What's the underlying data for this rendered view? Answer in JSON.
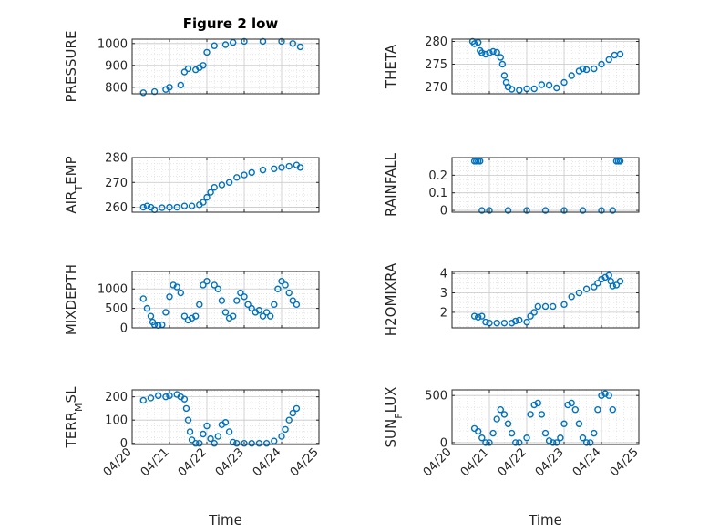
{
  "figure": {
    "title": "Figure 2 low",
    "marker_color": "#0072BD",
    "x_ticks": [
      "04/20",
      "04/21",
      "04/22",
      "04/23",
      "04/24",
      "04/25"
    ],
    "xlabel": "Time"
  },
  "chart_data": [
    {
      "type": "scatter",
      "name": "pressure",
      "ylabel": "PRESSURE",
      "title": "Figure 2 low",
      "xlim": [
        0,
        5
      ],
      "ylim": [
        770,
        1020
      ],
      "yticks": [
        800,
        900,
        1000
      ],
      "grid": true,
      "minor_grid": true,
      "x_ticklabels": [],
      "points": [
        [
          0.3,
          775
        ],
        [
          0.6,
          780
        ],
        [
          0.9,
          790
        ],
        [
          1.0,
          800
        ],
        [
          1.3,
          810
        ],
        [
          1.4,
          870
        ],
        [
          1.5,
          885
        ],
        [
          1.7,
          880
        ],
        [
          1.8,
          890
        ],
        [
          1.9,
          900
        ],
        [
          2.0,
          960
        ],
        [
          2.2,
          990
        ],
        [
          2.5,
          995
        ],
        [
          2.7,
          1005
        ],
        [
          3.0,
          1010
        ],
        [
          3.5,
          1010
        ],
        [
          4.0,
          1010
        ],
        [
          4.3,
          1000
        ],
        [
          4.5,
          985
        ]
      ]
    },
    {
      "type": "scatter",
      "name": "theta",
      "ylabel": "THETA",
      "xlim": [
        0,
        5
      ],
      "ylim": [
        268.5,
        280.5
      ],
      "yticks": [
        270,
        275,
        280
      ],
      "grid": true,
      "minor_grid": true,
      "x_ticklabels": [],
      "points": [
        [
          0.55,
          280
        ],
        [
          0.6,
          279.5
        ],
        [
          0.7,
          279.8
        ],
        [
          0.75,
          278
        ],
        [
          0.8,
          277.5
        ],
        [
          0.9,
          277.2
        ],
        [
          1.0,
          277.5
        ],
        [
          1.1,
          277.8
        ],
        [
          1.2,
          277.6
        ],
        [
          1.3,
          276.5
        ],
        [
          1.35,
          275
        ],
        [
          1.4,
          272.5
        ],
        [
          1.45,
          271
        ],
        [
          1.5,
          270
        ],
        [
          1.6,
          269.5
        ],
        [
          1.8,
          269.3
        ],
        [
          2.0,
          269.6
        ],
        [
          2.2,
          269.6
        ],
        [
          2.4,
          270.5
        ],
        [
          2.6,
          270.4
        ],
        [
          2.8,
          269.8
        ],
        [
          3.0,
          271
        ],
        [
          3.2,
          272.5
        ],
        [
          3.4,
          273.5
        ],
        [
          3.5,
          274
        ],
        [
          3.6,
          273.8
        ],
        [
          3.8,
          274
        ],
        [
          4.0,
          275
        ],
        [
          4.2,
          276
        ],
        [
          4.35,
          277
        ],
        [
          4.5,
          277.2
        ]
      ]
    },
    {
      "type": "scatter",
      "name": "air_temp",
      "ylabel": "AIR_TEMP",
      "xlim": [
        0,
        5
      ],
      "ylim": [
        258,
        280
      ],
      "yticks": [
        260,
        270,
        280
      ],
      "grid": true,
      "minor_grid": true,
      "x_ticklabels": [],
      "points": [
        [
          0.3,
          260
        ],
        [
          0.4,
          260.5
        ],
        [
          0.5,
          260
        ],
        [
          0.6,
          259
        ],
        [
          0.8,
          259.8
        ],
        [
          1.0,
          260
        ],
        [
          1.2,
          260
        ],
        [
          1.4,
          260.5
        ],
        [
          1.6,
          260.5
        ],
        [
          1.8,
          261
        ],
        [
          1.9,
          262
        ],
        [
          2.0,
          264
        ],
        [
          2.1,
          266
        ],
        [
          2.2,
          268
        ],
        [
          2.4,
          269
        ],
        [
          2.6,
          270
        ],
        [
          2.8,
          272
        ],
        [
          3.0,
          273
        ],
        [
          3.2,
          274
        ],
        [
          3.5,
          275
        ],
        [
          3.8,
          275.5
        ],
        [
          4.0,
          276
        ],
        [
          4.2,
          276.5
        ],
        [
          4.4,
          277
        ],
        [
          4.5,
          276
        ]
      ]
    },
    {
      "type": "scatter",
      "name": "rainfall",
      "ylabel": "RAINFALL",
      "xlim": [
        0,
        5
      ],
      "ylim": [
        -0.01,
        0.3
      ],
      "yticks": [
        0,
        0.1,
        0.2
      ],
      "ytick_labels": [
        "0",
        "0.1",
        "0.2"
      ],
      "grid": true,
      "minor_grid": true,
      "x_ticklabels": [],
      "points": [
        [
          0.6,
          0.28
        ],
        [
          0.65,
          0.28
        ],
        [
          0.7,
          0.28
        ],
        [
          0.75,
          0.28
        ],
        [
          0.8,
          0
        ],
        [
          1.0,
          0
        ],
        [
          1.5,
          0
        ],
        [
          2.0,
          0
        ],
        [
          2.5,
          0
        ],
        [
          3.0,
          0
        ],
        [
          3.5,
          0
        ],
        [
          4.0,
          0
        ],
        [
          4.3,
          0
        ],
        [
          4.4,
          0.28
        ],
        [
          4.45,
          0.28
        ],
        [
          4.5,
          0.28
        ]
      ]
    },
    {
      "type": "scatter",
      "name": "mixdepth",
      "ylabel": "MIXDEPTH",
      "xlim": [
        0,
        5
      ],
      "ylim": [
        0,
        1450
      ],
      "yticks": [
        0,
        500,
        1000
      ],
      "grid": true,
      "minor_grid": true,
      "x_ticklabels": [],
      "points": [
        [
          0.3,
          750
        ],
        [
          0.4,
          500
        ],
        [
          0.5,
          300
        ],
        [
          0.55,
          150
        ],
        [
          0.6,
          80
        ],
        [
          0.7,
          60
        ],
        [
          0.8,
          80
        ],
        [
          0.9,
          400
        ],
        [
          1.0,
          800
        ],
        [
          1.1,
          1100
        ],
        [
          1.2,
          1050
        ],
        [
          1.3,
          900
        ],
        [
          1.4,
          300
        ],
        [
          1.5,
          200
        ],
        [
          1.6,
          250
        ],
        [
          1.7,
          300
        ],
        [
          1.8,
          600
        ],
        [
          1.9,
          1100
        ],
        [
          2.0,
          1200
        ],
        [
          2.2,
          1100
        ],
        [
          2.3,
          1000
        ],
        [
          2.4,
          700
        ],
        [
          2.5,
          400
        ],
        [
          2.6,
          250
        ],
        [
          2.7,
          300
        ],
        [
          2.8,
          700
        ],
        [
          2.9,
          900
        ],
        [
          3.0,
          800
        ],
        [
          3.1,
          600
        ],
        [
          3.2,
          500
        ],
        [
          3.3,
          400
        ],
        [
          3.4,
          450
        ],
        [
          3.5,
          300
        ],
        [
          3.6,
          400
        ],
        [
          3.7,
          300
        ],
        [
          3.8,
          600
        ],
        [
          3.9,
          1000
        ],
        [
          4.0,
          1200
        ],
        [
          4.1,
          1100
        ],
        [
          4.2,
          900
        ],
        [
          4.3,
          700
        ],
        [
          4.4,
          600
        ]
      ]
    },
    {
      "type": "scatter",
      "name": "h2omixra",
      "ylabel": "H2OMIXRA",
      "xlim": [
        0,
        5
      ],
      "ylim": [
        1.2,
        4.1
      ],
      "yticks": [
        2,
        3,
        4
      ],
      "grid": true,
      "minor_grid": true,
      "x_ticklabels": [],
      "points": [
        [
          0.6,
          1.8
        ],
        [
          0.7,
          1.75
        ],
        [
          0.8,
          1.8
        ],
        [
          0.9,
          1.5
        ],
        [
          1.0,
          1.45
        ],
        [
          1.2,
          1.45
        ],
        [
          1.4,
          1.45
        ],
        [
          1.6,
          1.45
        ],
        [
          1.7,
          1.55
        ],
        [
          1.8,
          1.6
        ],
        [
          2.0,
          1.5
        ],
        [
          2.1,
          1.8
        ],
        [
          2.2,
          2.0
        ],
        [
          2.3,
          2.3
        ],
        [
          2.5,
          2.3
        ],
        [
          2.7,
          2.3
        ],
        [
          3.0,
          2.4
        ],
        [
          3.2,
          2.8
        ],
        [
          3.4,
          3.0
        ],
        [
          3.6,
          3.2
        ],
        [
          3.8,
          3.3
        ],
        [
          3.9,
          3.5
        ],
        [
          4.0,
          3.7
        ],
        [
          4.1,
          3.8
        ],
        [
          4.2,
          3.9
        ],
        [
          4.25,
          3.6
        ],
        [
          4.3,
          3.35
        ],
        [
          4.4,
          3.4
        ],
        [
          4.5,
          3.6
        ]
      ]
    },
    {
      "type": "scatter",
      "name": "terr_msl",
      "ylabel": "TERR_MSL",
      "xlim": [
        0,
        5
      ],
      "ylim": [
        -5,
        230
      ],
      "yticks": [
        0,
        100,
        200
      ],
      "grid": true,
      "minor_grid": true,
      "x_ticklabels": [
        "04/20",
        "04/21",
        "04/22",
        "04/23",
        "04/24",
        "04/25"
      ],
      "xlabel": "Time",
      "points": [
        [
          0.3,
          185
        ],
        [
          0.5,
          195
        ],
        [
          0.7,
          205
        ],
        [
          0.9,
          200
        ],
        [
          1.0,
          205
        ],
        [
          1.2,
          210
        ],
        [
          1.3,
          200
        ],
        [
          1.4,
          190
        ],
        [
          1.45,
          150
        ],
        [
          1.5,
          100
        ],
        [
          1.55,
          50
        ],
        [
          1.6,
          15
        ],
        [
          1.7,
          0
        ],
        [
          1.8,
          0
        ],
        [
          1.9,
          40
        ],
        [
          2.0,
          75
        ],
        [
          2.1,
          20
        ],
        [
          2.2,
          0
        ],
        [
          2.3,
          30
        ],
        [
          2.4,
          80
        ],
        [
          2.5,
          90
        ],
        [
          2.6,
          50
        ],
        [
          2.7,
          5
        ],
        [
          2.8,
          0
        ],
        [
          3.0,
          0
        ],
        [
          3.2,
          0
        ],
        [
          3.4,
          0
        ],
        [
          3.6,
          0
        ],
        [
          3.8,
          10
        ],
        [
          4.0,
          30
        ],
        [
          4.1,
          60
        ],
        [
          4.2,
          100
        ],
        [
          4.3,
          130
        ],
        [
          4.4,
          150
        ]
      ]
    },
    {
      "type": "scatter",
      "name": "sun_flux",
      "ylabel": "SUN_FLUX",
      "xlim": [
        0,
        5
      ],
      "ylim": [
        -20,
        560
      ],
      "yticks": [
        0,
        500
      ],
      "grid": true,
      "minor_grid": true,
      "x_ticklabels": [
        "04/20",
        "04/21",
        "04/22",
        "04/23",
        "04/24",
        "04/25"
      ],
      "xlabel": "Time",
      "points": [
        [
          0.6,
          150
        ],
        [
          0.7,
          120
        ],
        [
          0.8,
          50
        ],
        [
          0.9,
          0
        ],
        [
          1.0,
          0
        ],
        [
          1.1,
          100
        ],
        [
          1.2,
          250
        ],
        [
          1.3,
          350
        ],
        [
          1.4,
          300
        ],
        [
          1.5,
          200
        ],
        [
          1.6,
          100
        ],
        [
          1.7,
          0
        ],
        [
          1.8,
          0
        ],
        [
          2.0,
          50
        ],
        [
          2.1,
          300
        ],
        [
          2.2,
          400
        ],
        [
          2.3,
          420
        ],
        [
          2.4,
          300
        ],
        [
          2.5,
          100
        ],
        [
          2.6,
          20
        ],
        [
          2.7,
          0
        ],
        [
          2.8,
          0
        ],
        [
          2.9,
          50
        ],
        [
          3.0,
          200
        ],
        [
          3.1,
          400
        ],
        [
          3.2,
          420
        ],
        [
          3.3,
          350
        ],
        [
          3.4,
          200
        ],
        [
          3.5,
          50
        ],
        [
          3.6,
          0
        ],
        [
          3.7,
          0
        ],
        [
          3.8,
          100
        ],
        [
          3.9,
          350
        ],
        [
          4.0,
          500
        ],
        [
          4.1,
          520
        ],
        [
          4.2,
          500
        ],
        [
          4.3,
          350
        ]
      ]
    }
  ]
}
